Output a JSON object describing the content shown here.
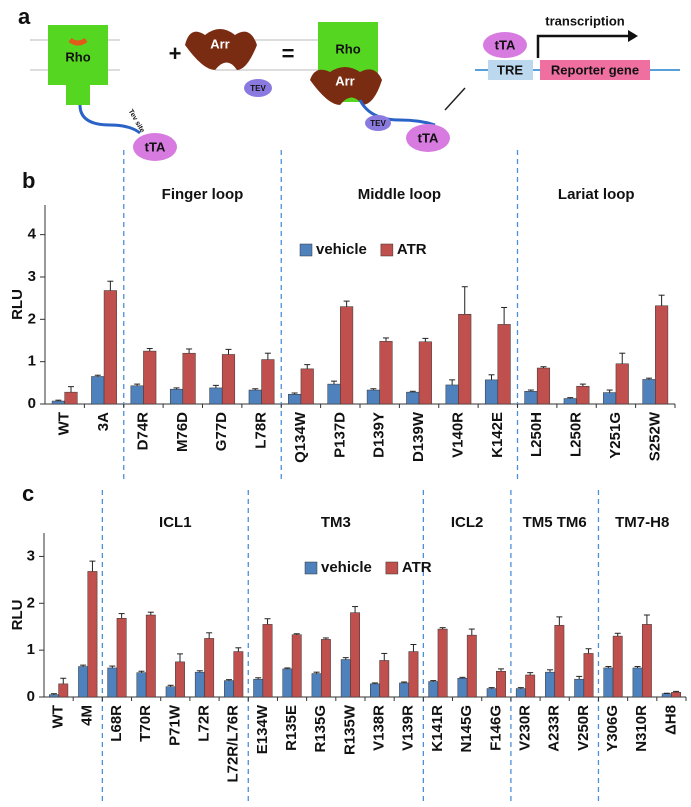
{
  "diagram": {
    "panel_label": "a",
    "rho1": "Rho",
    "tta1": "tTA",
    "tev_site": "Tev site",
    "plus": "+",
    "arr1": "Arr",
    "tev1": "TEV",
    "equals": "=",
    "rho2": "Rho",
    "arr2": "Arr",
    "tev2": "TEV",
    "tta2": "tTA",
    "tta3": "tTA",
    "transcription": "transcription",
    "tre": "TRE",
    "reporter": "Reporter gene"
  },
  "chart_data": [
    {
      "type": "bar",
      "panel_label": "b",
      "y_label": "RLU",
      "categories": [
        "WT",
        "3A",
        "D74R",
        "M76D",
        "G77D",
        "L78R",
        "Q134W",
        "P137D",
        "D139Y",
        "D139W",
        "V140R",
        "K142E",
        "L250H",
        "L250R",
        "Y251G",
        "S252W"
      ],
      "groups": [
        {
          "label": null,
          "size": 2
        },
        {
          "label": "Finger loop",
          "size": 4
        },
        {
          "label": "Middle loop",
          "size": 6
        },
        {
          "label": "Lariat loop",
          "size": 4
        }
      ],
      "series": [
        {
          "name": "vehicle",
          "color": "#4f81bd",
          "values": [
            0.07,
            0.65,
            0.43,
            0.35,
            0.38,
            0.33,
            0.23,
            0.47,
            0.33,
            0.28,
            0.45,
            0.57,
            0.3,
            0.13,
            0.27,
            0.58
          ],
          "errors": [
            0.02,
            0.03,
            0.04,
            0.03,
            0.06,
            0.03,
            0.03,
            0.07,
            0.03,
            0.02,
            0.12,
            0.12,
            0.03,
            0.02,
            0.06,
            0.03
          ]
        },
        {
          "name": "ATR",
          "color": "#c0504d",
          "values": [
            0.28,
            2.68,
            1.25,
            1.2,
            1.17,
            1.05,
            0.83,
            2.3,
            1.48,
            1.47,
            2.12,
            1.88,
            0.85,
            0.42,
            0.95,
            2.32
          ],
          "errors": [
            0.13,
            0.22,
            0.06,
            0.1,
            0.12,
            0.15,
            0.1,
            0.13,
            0.08,
            0.08,
            0.65,
            0.4,
            0.03,
            0.05,
            0.25,
            0.25
          ]
        }
      ],
      "ylim": [
        0,
        4.7
      ],
      "yticks": [
        0,
        1,
        2,
        3,
        4
      ],
      "legend": "top-center"
    },
    {
      "type": "bar",
      "panel_label": "c",
      "y_label": "RLU",
      "categories": [
        "WT",
        "4M",
        "L68R",
        "T70R",
        "P71W",
        "L72R",
        "L72R/L76R",
        "E134W",
        "R135E",
        "R135G",
        "R135W",
        "V138R",
        "V139R",
        "K141R",
        "N145G",
        "F146G",
        "V230R",
        "A233R",
        "V250R",
        "Y306G",
        "N310R",
        "ΔH8"
      ],
      "groups": [
        {
          "label": null,
          "size": 2
        },
        {
          "label": "ICL1",
          "size": 5
        },
        {
          "label": "TM3",
          "size": 6
        },
        {
          "label": "ICL2",
          "size": 3
        },
        {
          "label": "TM5 TM6",
          "size": 3
        },
        {
          "label": "TM7-H8",
          "size": 3
        }
      ],
      "series": [
        {
          "name": "vehicle",
          "color": "#4f81bd",
          "values": [
            0.05,
            0.65,
            0.62,
            0.52,
            0.22,
            0.53,
            0.35,
            0.38,
            0.6,
            0.5,
            0.8,
            0.28,
            0.3,
            0.33,
            0.4,
            0.18,
            0.18,
            0.53,
            0.38,
            0.62,
            0.62,
            0.07
          ],
          "errors": [
            0.02,
            0.03,
            0.04,
            0.03,
            0.03,
            0.03,
            0.02,
            0.03,
            0.02,
            0.03,
            0.04,
            0.02,
            0.02,
            0.02,
            0.02,
            0.02,
            0.02,
            0.05,
            0.06,
            0.03,
            0.03,
            0.01
          ]
        },
        {
          "name": "ATR",
          "color": "#c0504d",
          "values": [
            0.28,
            2.68,
            1.68,
            1.75,
            0.75,
            1.25,
            0.97,
            1.55,
            1.33,
            1.23,
            1.8,
            0.78,
            0.97,
            1.45,
            1.32,
            0.55,
            0.47,
            1.53,
            0.93,
            1.3,
            1.55,
            0.1
          ],
          "errors": [
            0.12,
            0.22,
            0.1,
            0.06,
            0.17,
            0.12,
            0.08,
            0.12,
            0.02,
            0.03,
            0.13,
            0.15,
            0.15,
            0.03,
            0.13,
            0.05,
            0.05,
            0.18,
            0.1,
            0.06,
            0.2,
            0.02
          ]
        }
      ],
      "ylim": [
        0,
        3.5
      ],
      "yticks": [
        0,
        1,
        2,
        3
      ],
      "legend": "top-center"
    }
  ]
}
